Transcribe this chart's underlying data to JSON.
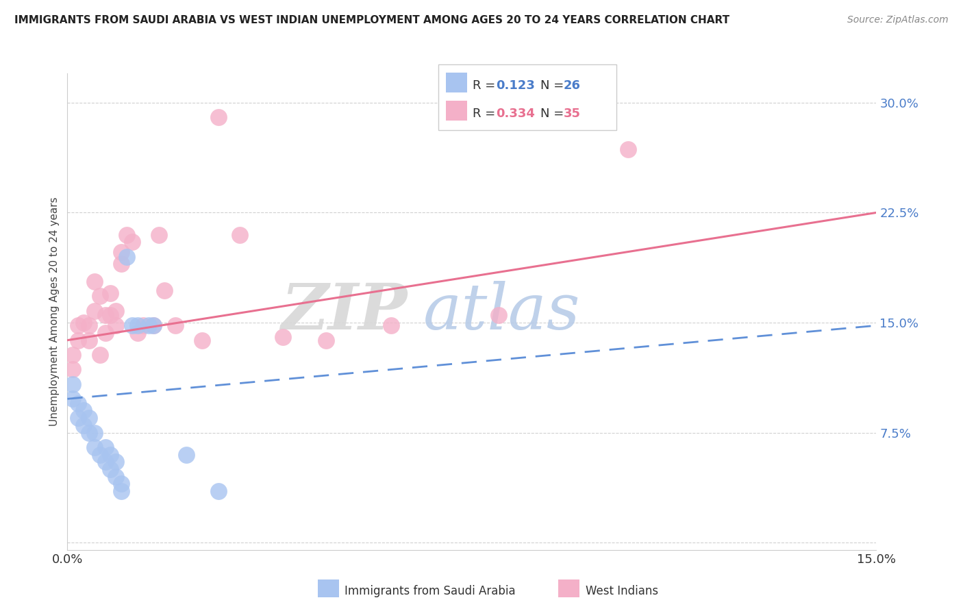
{
  "title": "IMMIGRANTS FROM SAUDI ARABIA VS WEST INDIAN UNEMPLOYMENT AMONG AGES 20 TO 24 YEARS CORRELATION CHART",
  "source": "Source: ZipAtlas.com",
  "ylabel": "Unemployment Among Ages 20 to 24 years",
  "xlabel_blue": "Immigrants from Saudi Arabia",
  "xlabel_pink": "West Indians",
  "xlim": [
    0.0,
    0.15
  ],
  "ylim": [
    -0.005,
    0.32
  ],
  "yticks": [
    0.0,
    0.075,
    0.15,
    0.225,
    0.3
  ],
  "ytick_labels": [
    "",
    "7.5%",
    "15.0%",
    "22.5%",
    "30.0%"
  ],
  "xticks": [
    0.0,
    0.03,
    0.06,
    0.09,
    0.12,
    0.15
  ],
  "xtick_labels": [
    "0.0%",
    "",
    "",
    "",
    "",
    "15.0%"
  ],
  "blue_color": "#a8c4f0",
  "pink_color": "#f4b0c8",
  "blue_line_color": "#6090d8",
  "pink_line_color": "#e87090",
  "watermark_zip": "ZIP",
  "watermark_atlas": "atlas",
  "blue_x": [
    0.001,
    0.001,
    0.002,
    0.002,
    0.003,
    0.003,
    0.004,
    0.004,
    0.005,
    0.005,
    0.006,
    0.007,
    0.007,
    0.008,
    0.008,
    0.009,
    0.009,
    0.01,
    0.01,
    0.011,
    0.012,
    0.013,
    0.015,
    0.016,
    0.022,
    0.028
  ],
  "blue_y": [
    0.108,
    0.098,
    0.095,
    0.085,
    0.09,
    0.08,
    0.085,
    0.075,
    0.075,
    0.065,
    0.06,
    0.065,
    0.055,
    0.06,
    0.05,
    0.055,
    0.045,
    0.04,
    0.035,
    0.195,
    0.148,
    0.148,
    0.148,
    0.148,
    0.06,
    0.035
  ],
  "pink_x": [
    0.001,
    0.001,
    0.002,
    0.002,
    0.003,
    0.004,
    0.004,
    0.005,
    0.005,
    0.006,
    0.006,
    0.007,
    0.007,
    0.008,
    0.008,
    0.009,
    0.009,
    0.01,
    0.01,
    0.011,
    0.012,
    0.013,
    0.014,
    0.016,
    0.017,
    0.018,
    0.02,
    0.025,
    0.028,
    0.032,
    0.04,
    0.048,
    0.06,
    0.08,
    0.104
  ],
  "pink_y": [
    0.128,
    0.118,
    0.148,
    0.138,
    0.15,
    0.148,
    0.138,
    0.178,
    0.158,
    0.128,
    0.168,
    0.155,
    0.143,
    0.17,
    0.155,
    0.158,
    0.148,
    0.198,
    0.19,
    0.21,
    0.205,
    0.143,
    0.148,
    0.148,
    0.21,
    0.172,
    0.148,
    0.138,
    0.29,
    0.21,
    0.14,
    0.138,
    0.148,
    0.155,
    0.268
  ],
  "blue_line_x": [
    0.0,
    0.15
  ],
  "blue_line_y": [
    0.098,
    0.148
  ],
  "pink_line_x": [
    0.0,
    0.15
  ],
  "pink_line_y": [
    0.138,
    0.225
  ]
}
